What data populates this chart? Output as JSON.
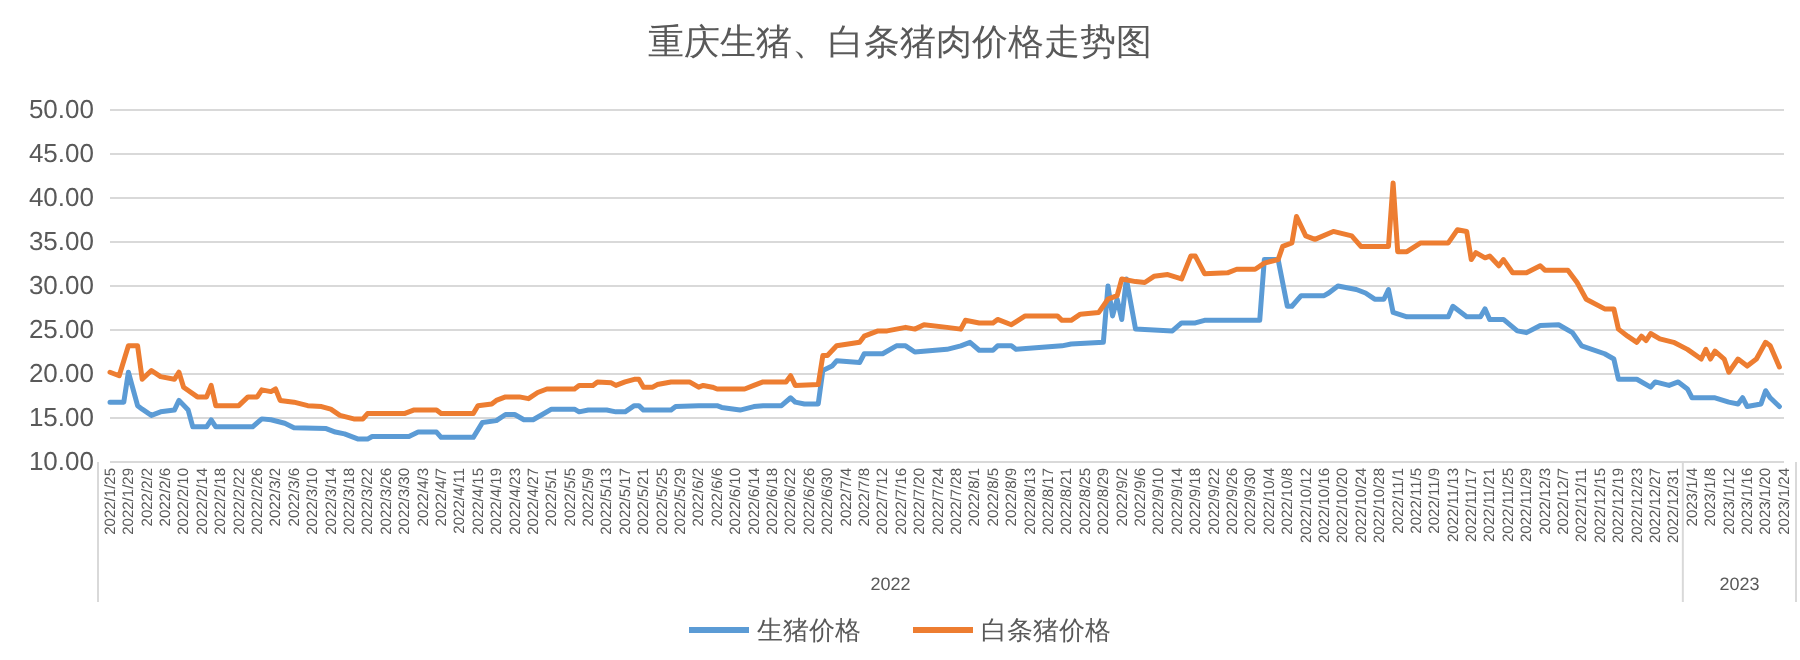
{
  "chart_data": {
    "type": "line",
    "title": "重庆生猪、白条猪肉价格走势图",
    "ylim": [
      10,
      50
    ],
    "yticks": [
      {
        "value": 10,
        "label": "10.00"
      },
      {
        "value": 15,
        "label": "15.00"
      },
      {
        "value": 20,
        "label": "20.00"
      },
      {
        "value": 25,
        "label": "25.00"
      },
      {
        "value": 30,
        "label": "30.00"
      },
      {
        "value": 35,
        "label": "35.00"
      },
      {
        "value": 40,
        "label": "40.00"
      },
      {
        "value": 45,
        "label": "45.00"
      },
      {
        "value": 50,
        "label": "50.00"
      }
    ],
    "xlim": [
      "2022-01-25",
      "2023-01-24"
    ],
    "xticks": [
      {
        "value": "2022-01-25",
        "label": "2022/1/25"
      },
      {
        "value": "2022-01-29",
        "label": "2022/1/29"
      },
      {
        "value": "2022-02-02",
        "label": "2022/2/2"
      },
      {
        "value": "2022-02-06",
        "label": "2022/2/6"
      },
      {
        "value": "2022-02-10",
        "label": "2022/2/10"
      },
      {
        "value": "2022-02-14",
        "label": "2022/2/14"
      },
      {
        "value": "2022-02-18",
        "label": "2022/2/18"
      },
      {
        "value": "2022-02-22",
        "label": "2022/2/22"
      },
      {
        "value": "2022-02-26",
        "label": "2022/2/26"
      },
      {
        "value": "2022-03-02",
        "label": "2022/3/2"
      },
      {
        "value": "2022-03-06",
        "label": "2022/3/6"
      },
      {
        "value": "2022-03-10",
        "label": "2022/3/10"
      },
      {
        "value": "2022-03-14",
        "label": "2022/3/14"
      },
      {
        "value": "2022-03-18",
        "label": "2022/3/18"
      },
      {
        "value": "2022-03-22",
        "label": "2022/3/22"
      },
      {
        "value": "2022-03-26",
        "label": "2022/3/26"
      },
      {
        "value": "2022-03-30",
        "label": "2022/3/30"
      },
      {
        "value": "2022-04-03",
        "label": "2022/4/3"
      },
      {
        "value": "2022-04-07",
        "label": "2022/4/7"
      },
      {
        "value": "2022-04-11",
        "label": "2022/4/11"
      },
      {
        "value": "2022-04-15",
        "label": "2022/4/15"
      },
      {
        "value": "2022-04-19",
        "label": "2022/4/19"
      },
      {
        "value": "2022-04-23",
        "label": "2022/4/23"
      },
      {
        "value": "2022-04-27",
        "label": "2022/4/27"
      },
      {
        "value": "2022-05-01",
        "label": "2022/5/1"
      },
      {
        "value": "2022-05-05",
        "label": "2022/5/5"
      },
      {
        "value": "2022-05-09",
        "label": "2022/5/9"
      },
      {
        "value": "2022-05-13",
        "label": "2022/5/13"
      },
      {
        "value": "2022-05-17",
        "label": "2022/5/17"
      },
      {
        "value": "2022-05-21",
        "label": "2022/5/21"
      },
      {
        "value": "2022-05-25",
        "label": "2022/5/25"
      },
      {
        "value": "2022-05-29",
        "label": "2022/5/29"
      },
      {
        "value": "2022-06-02",
        "label": "2022/6/2"
      },
      {
        "value": "2022-06-06",
        "label": "2022/6/6"
      },
      {
        "value": "2022-06-10",
        "label": "2022/6/10"
      },
      {
        "value": "2022-06-14",
        "label": "2022/6/14"
      },
      {
        "value": "2022-06-18",
        "label": "2022/6/18"
      },
      {
        "value": "2022-06-22",
        "label": "2022/6/22"
      },
      {
        "value": "2022-06-26",
        "label": "2022/6/26"
      },
      {
        "value": "2022-06-30",
        "label": "2022/6/30"
      },
      {
        "value": "2022-07-04",
        "label": "2022/7/4"
      },
      {
        "value": "2022-07-08",
        "label": "2022/7/8"
      },
      {
        "value": "2022-07-12",
        "label": "2022/7/12"
      },
      {
        "value": "2022-07-16",
        "label": "2022/7/16"
      },
      {
        "value": "2022-07-20",
        "label": "2022/7/20"
      },
      {
        "value": "2022-07-24",
        "label": "2022/7/24"
      },
      {
        "value": "2022-07-28",
        "label": "2022/7/28"
      },
      {
        "value": "2022-08-01",
        "label": "2022/8/1"
      },
      {
        "value": "2022-08-05",
        "label": "2022/8/5"
      },
      {
        "value": "2022-08-09",
        "label": "2022/8/9"
      },
      {
        "value": "2022-08-13",
        "label": "2022/8/13"
      },
      {
        "value": "2022-08-17",
        "label": "2022/8/17"
      },
      {
        "value": "2022-08-21",
        "label": "2022/8/21"
      },
      {
        "value": "2022-08-25",
        "label": "2022/8/25"
      },
      {
        "value": "2022-08-29",
        "label": "2022/8/29"
      },
      {
        "value": "2022-09-02",
        "label": "2022/9/2"
      },
      {
        "value": "2022-09-06",
        "label": "2022/9/6"
      },
      {
        "value": "2022-09-10",
        "label": "2022/9/10"
      },
      {
        "value": "2022-09-14",
        "label": "2022/9/14"
      },
      {
        "value": "2022-09-18",
        "label": "2022/9/18"
      },
      {
        "value": "2022-09-22",
        "label": "2022/9/22"
      },
      {
        "value": "2022-09-26",
        "label": "2022/9/26"
      },
      {
        "value": "2022-09-30",
        "label": "2022/9/30"
      },
      {
        "value": "2022-10-04",
        "label": "2022/10/4"
      },
      {
        "value": "2022-10-08",
        "label": "2022/10/8"
      },
      {
        "value": "2022-10-12",
        "label": "2022/10/12"
      },
      {
        "value": "2022-10-16",
        "label": "2022/10/16"
      },
      {
        "value": "2022-10-20",
        "label": "2022/10/20"
      },
      {
        "value": "2022-10-24",
        "label": "2022/10/24"
      },
      {
        "value": "2022-10-28",
        "label": "2022/10/28"
      },
      {
        "value": "2022-11-01",
        "label": "2022/11/1"
      },
      {
        "value": "2022-11-05",
        "label": "2022/11/5"
      },
      {
        "value": "2022-11-09",
        "label": "2022/11/9"
      },
      {
        "value": "2022-11-13",
        "label": "2022/11/13"
      },
      {
        "value": "2022-11-17",
        "label": "2022/11/17"
      },
      {
        "value": "2022-11-21",
        "label": "2022/11/21"
      },
      {
        "value": "2022-11-25",
        "label": "2022/11/25"
      },
      {
        "value": "2022-11-29",
        "label": "2022/11/29"
      },
      {
        "value": "2022-12-03",
        "label": "2022/12/3"
      },
      {
        "value": "2022-12-07",
        "label": "2022/12/7"
      },
      {
        "value": "2022-12-11",
        "label": "2022/12/11"
      },
      {
        "value": "2022-12-15",
        "label": "2022/12/15"
      },
      {
        "value": "2022-12-19",
        "label": "2022/12/19"
      },
      {
        "value": "2022-12-23",
        "label": "2022/12/23"
      },
      {
        "value": "2022-12-27",
        "label": "2022/12/27"
      },
      {
        "value": "2022-12-31",
        "label": "2022/12/31"
      },
      {
        "value": "2023-01-04",
        "label": "2023/1/4"
      },
      {
        "value": "2023-01-08",
        "label": "2023/1/8"
      },
      {
        "value": "2023-01-12",
        "label": "2023/1/12"
      },
      {
        "value": "2023-01-16",
        "label": "2023/1/16"
      },
      {
        "value": "2023-01-20",
        "label": "2023/1/20"
      },
      {
        "value": "2023-01-24",
        "label": "2023/1/24"
      }
    ],
    "annotations": [
      "2022",
      "2023"
    ],
    "grid": "y",
    "legend": "bottom",
    "line_style": "solid",
    "series": [
      {
        "name": "生猪价格",
        "color": "#5b9bd5",
        "x": [
          "2022-01-25",
          "2022-01-28",
          "2022-01-29",
          "2022-01-31",
          "2022-02-01",
          "2022-02-03",
          "2022-02-05",
          "2022-02-08",
          "2022-02-09",
          "2022-02-11",
          "2022-02-12",
          "2022-02-15",
          "2022-02-16",
          "2022-02-17",
          "2022-02-25",
          "2022-02-27",
          "2022-03-01",
          "2022-03-04",
          "2022-03-06",
          "2022-03-13",
          "2022-03-15",
          "2022-03-17",
          "2022-03-20",
          "2022-03-22",
          "2022-03-23",
          "2022-03-31",
          "2022-04-02",
          "2022-04-06",
          "2022-04-07",
          "2022-04-14",
          "2022-04-16",
          "2022-04-19",
          "2022-04-21",
          "2022-04-23",
          "2022-04-25",
          "2022-04-27",
          "2022-04-29",
          "2022-05-01",
          "2022-05-06",
          "2022-05-07",
          "2022-05-09",
          "2022-05-13",
          "2022-05-15",
          "2022-05-17",
          "2022-05-19",
          "2022-05-20",
          "2022-05-21",
          "2022-05-27",
          "2022-05-28",
          "2022-06-02",
          "2022-06-06",
          "2022-06-07",
          "2022-06-11",
          "2022-06-14",
          "2022-06-16",
          "2022-06-20",
          "2022-06-22",
          "2022-06-23",
          "2022-06-25",
          "2022-06-28",
          "2022-06-29",
          "2022-07-01",
          "2022-07-02",
          "2022-07-07",
          "2022-07-08",
          "2022-07-12",
          "2022-07-15",
          "2022-07-17",
          "2022-07-19",
          "2022-07-26",
          "2022-07-29",
          "2022-07-31",
          "2022-08-02",
          "2022-08-05",
          "2022-08-06",
          "2022-08-09",
          "2022-08-10",
          "2022-08-20",
          "2022-08-22",
          "2022-08-29",
          "2022-08-30",
          "2022-08-31",
          "2022-09-01",
          "2022-09-02",
          "2022-09-03",
          "2022-09-05",
          "2022-09-13",
          "2022-09-15",
          "2022-09-18",
          "2022-09-20",
          "2022-10-02",
          "2022-10-03",
          "2022-10-06",
          "2022-10-08",
          "2022-10-09",
          "2022-10-11",
          "2022-10-16",
          "2022-10-17",
          "2022-10-19",
          "2022-10-23",
          "2022-10-25",
          "2022-10-27",
          "2022-10-29",
          "2022-10-30",
          "2022-10-31",
          "2022-11-03",
          "2022-11-12",
          "2022-11-13",
          "2022-11-16",
          "2022-11-19",
          "2022-11-20",
          "2022-11-21",
          "2022-11-24",
          "2022-11-27",
          "2022-11-29",
          "2022-12-02",
          "2022-12-06",
          "2022-12-09",
          "2022-12-11",
          "2022-12-16",
          "2022-12-18",
          "2022-12-19",
          "2022-12-23",
          "2022-12-26",
          "2022-12-27",
          "2022-12-30",
          "2023-01-01",
          "2023-01-03",
          "2023-01-04",
          "2023-01-09",
          "2023-01-12",
          "2023-01-14",
          "2023-01-15",
          "2023-01-16",
          "2023-01-19",
          "2023-01-20",
          "2023-01-21",
          "2023-01-23"
        ],
        "values": [
          16.8,
          16.8,
          20.2,
          16.4,
          16.0,
          15.3,
          15.7,
          15.9,
          17.0,
          15.9,
          14.0,
          14.0,
          14.8,
          14.0,
          14.0,
          14.9,
          14.8,
          14.4,
          13.9,
          13.8,
          13.4,
          13.2,
          12.6,
          12.6,
          12.9,
          12.9,
          13.4,
          13.4,
          12.8,
          12.8,
          14.5,
          14.7,
          15.4,
          15.4,
          14.8,
          14.8,
          15.4,
          16.0,
          16.0,
          15.7,
          15.9,
          15.9,
          15.7,
          15.7,
          16.4,
          16.4,
          15.9,
          15.9,
          16.3,
          16.4,
          16.4,
          16.2,
          15.9,
          16.3,
          16.4,
          16.4,
          17.3,
          16.8,
          16.6,
          16.6,
          20.4,
          20.9,
          21.5,
          21.3,
          22.3,
          22.3,
          23.2,
          23.2,
          22.5,
          22.8,
          23.2,
          23.6,
          22.7,
          22.7,
          23.2,
          23.2,
          22.8,
          23.2,
          23.4,
          23.6,
          30.0,
          26.6,
          28.5,
          26.2,
          30.8,
          25.1,
          24.9,
          25.8,
          25.8,
          26.1,
          26.1,
          33.0,
          33.0,
          27.7,
          27.7,
          28.9,
          28.9,
          29.2,
          30.0,
          29.6,
          29.2,
          28.5,
          28.5,
          29.6,
          27.0,
          26.5,
          26.5,
          27.7,
          26.5,
          26.5,
          27.4,
          26.2,
          26.2,
          24.9,
          24.7,
          25.5,
          25.6,
          24.7,
          23.2,
          22.3,
          21.7,
          19.4,
          19.4,
          18.5,
          19.1,
          18.7,
          19.1,
          18.3,
          17.3,
          17.3,
          16.8,
          16.6,
          17.3,
          16.3,
          16.6,
          18.1,
          17.3,
          16.3
        ]
      },
      {
        "name": "白条猪价格",
        "color": "#ed7d31",
        "x": [
          "2022-01-25",
          "2022-01-27",
          "2022-01-29",
          "2022-01-31",
          "2022-02-01",
          "2022-02-03",
          "2022-02-05",
          "2022-02-08",
          "2022-02-09",
          "2022-02-10",
          "2022-02-13",
          "2022-02-15",
          "2022-02-16",
          "2022-02-17",
          "2022-02-22",
          "2022-02-24",
          "2022-02-26",
          "2022-02-27",
          "2022-03-01",
          "2022-03-02",
          "2022-03-03",
          "2022-03-06",
          "2022-03-09",
          "2022-03-12",
          "2022-03-14",
          "2022-03-16",
          "2022-03-19",
          "2022-03-21",
          "2022-03-22",
          "2022-03-30",
          "2022-04-01",
          "2022-04-06",
          "2022-04-07",
          "2022-04-14",
          "2022-04-15",
          "2022-04-18",
          "2022-04-19",
          "2022-04-21",
          "2022-04-24",
          "2022-04-26",
          "2022-04-28",
          "2022-04-30",
          "2022-05-06",
          "2022-05-07",
          "2022-05-10",
          "2022-05-11",
          "2022-05-14",
          "2022-05-15",
          "2022-05-17",
          "2022-05-19",
          "2022-05-20",
          "2022-05-21",
          "2022-05-23",
          "2022-05-24",
          "2022-05-27",
          "2022-05-31",
          "2022-06-02",
          "2022-06-03",
          "2022-06-05",
          "2022-06-06",
          "2022-06-12",
          "2022-06-14",
          "2022-06-16",
          "2022-06-21",
          "2022-06-22",
          "2022-06-23",
          "2022-06-28",
          "2022-06-29",
          "2022-06-30",
          "2022-07-02",
          "2022-07-07",
          "2022-07-08",
          "2022-07-11",
          "2022-07-13",
          "2022-07-17",
          "2022-07-19",
          "2022-07-21",
          "2022-07-26",
          "2022-07-29",
          "2022-07-30",
          "2022-08-02",
          "2022-08-05",
          "2022-08-06",
          "2022-08-09",
          "2022-08-12",
          "2022-08-19",
          "2022-08-20",
          "2022-08-22",
          "2022-08-24",
          "2022-08-28",
          "2022-08-30",
          "2022-09-01",
          "2022-09-02",
          "2022-09-05",
          "2022-09-07",
          "2022-09-09",
          "2022-09-12",
          "2022-09-15",
          "2022-09-17",
          "2022-09-18",
          "2022-09-20",
          "2022-09-25",
          "2022-09-27",
          "2022-10-01",
          "2022-10-03",
          "2022-10-06",
          "2022-10-07",
          "2022-10-09",
          "2022-10-10",
          "2022-10-12",
          "2022-10-14",
          "2022-10-18",
          "2022-10-22",
          "2022-10-24",
          "2022-10-30",
          "2022-10-31",
          "2022-11-01",
          "2022-11-03",
          "2022-11-06",
          "2022-11-12",
          "2022-11-14",
          "2022-11-16",
          "2022-11-17",
          "2022-11-18",
          "2022-11-20",
          "2022-11-21",
          "2022-11-23",
          "2022-11-24",
          "2022-11-26",
          "2022-11-29",
          "2022-12-02",
          "2022-12-03",
          "2022-12-08",
          "2022-12-10",
          "2022-12-12",
          "2022-12-16",
          "2022-12-18",
          "2022-12-19",
          "2022-12-21",
          "2022-12-23",
          "2022-12-24",
          "2022-12-25",
          "2022-12-26",
          "2022-12-28",
          "2022-12-31",
          "2023-01-03",
          "2023-01-06",
          "2023-01-07",
          "2023-01-08",
          "2023-01-09",
          "2023-01-11",
          "2023-01-12",
          "2023-01-14",
          "2023-01-16",
          "2023-01-18",
          "2023-01-20",
          "2023-01-21",
          "2023-01-23"
        ],
        "values": [
          20.2,
          19.8,
          23.2,
          23.2,
          19.4,
          20.4,
          19.7,
          19.4,
          20.2,
          18.5,
          17.4,
          17.4,
          18.7,
          16.4,
          16.4,
          17.4,
          17.4,
          18.2,
          18.0,
          18.3,
          17.0,
          16.8,
          16.4,
          16.3,
          16.0,
          15.3,
          14.9,
          14.9,
          15.5,
          15.5,
          15.9,
          15.9,
          15.5,
          15.5,
          16.4,
          16.6,
          17.0,
          17.4,
          17.4,
          17.2,
          17.9,
          18.3,
          18.3,
          18.7,
          18.7,
          19.1,
          19.0,
          18.7,
          19.1,
          19.4,
          19.4,
          18.5,
          18.5,
          18.8,
          19.1,
          19.1,
          18.5,
          18.7,
          18.5,
          18.3,
          18.3,
          18.7,
          19.1,
          19.1,
          19.8,
          18.7,
          18.8,
          22.1,
          22.1,
          23.2,
          23.6,
          24.3,
          24.9,
          24.9,
          25.3,
          25.1,
          25.6,
          25.3,
          25.1,
          26.1,
          25.8,
          25.8,
          26.2,
          25.6,
          26.6,
          26.6,
          26.1,
          26.1,
          26.8,
          27.0,
          28.5,
          28.9,
          30.8,
          30.5,
          30.4,
          31.1,
          31.3,
          30.8,
          33.4,
          33.4,
          31.4,
          31.5,
          31.9,
          31.9,
          32.6,
          33.0,
          34.5,
          34.9,
          37.9,
          35.7,
          35.3,
          36.2,
          35.7,
          34.5,
          34.5,
          41.7,
          33.9,
          33.9,
          34.9,
          34.9,
          36.4,
          36.2,
          33.0,
          33.8,
          33.2,
          33.4,
          32.3,
          33.0,
          31.5,
          31.5,
          32.3,
          31.8,
          31.8,
          30.4,
          28.5,
          27.4,
          27.4,
          25.1,
          24.3,
          23.6,
          24.3,
          23.8,
          24.6,
          24.0,
          23.6,
          22.8,
          21.7,
          22.8,
          21.7,
          22.6,
          21.7,
          20.2,
          21.7,
          20.9,
          21.7,
          23.6,
          23.2,
          20.8
        ]
      }
    ]
  }
}
